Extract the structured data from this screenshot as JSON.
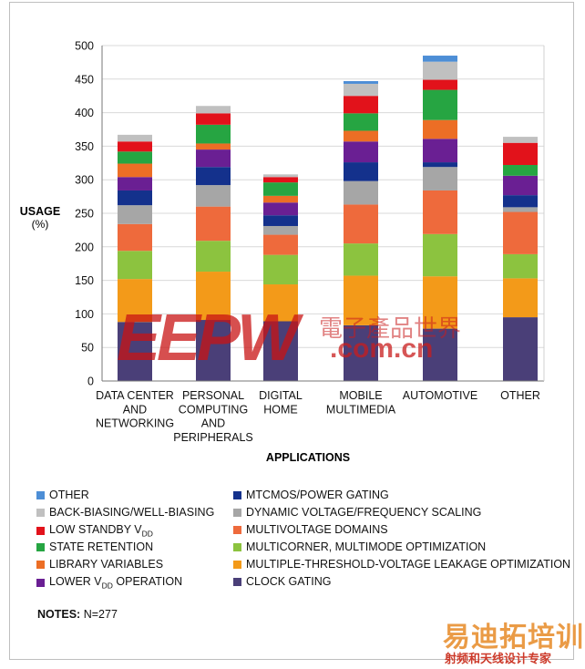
{
  "chart_data": {
    "type": "bar",
    "stacked": true,
    "ylabel": "USAGE",
    "ylabel_unit": "(%)",
    "xlabel": "APPLICATIONS",
    "ylim": [
      0,
      500
    ],
    "yticks": [
      0,
      50,
      100,
      150,
      200,
      250,
      300,
      350,
      400,
      450,
      500
    ],
    "grid": true,
    "legend_position": "bottom",
    "categories": [
      [
        "DATA CENTER",
        "AND",
        "NETWORKING"
      ],
      [
        "PERSONAL",
        "COMPUTING",
        "AND",
        "PERIPHERALS"
      ],
      [
        "DIGITAL",
        "HOME"
      ],
      [
        "MOBILE",
        "MULTIMEDIA"
      ],
      [
        "AUTOMOTIVE"
      ],
      [
        "OTHER"
      ]
    ],
    "series": [
      {
        "name": "CLOCK GATING",
        "color": "#4a3f78",
        "values": [
          88,
          91,
          89,
          83,
          78,
          95
        ]
      },
      {
        "name": "MULTIPLE-THRESHOLD-VOLTAGE LEAKAGE OPTIMIZATION",
        "color": "#f39a19",
        "values": [
          64,
          72,
          55,
          74,
          78,
          58
        ]
      },
      {
        "name": "MULTICORNER, MULTIMODE OPTIMIZATION",
        "color": "#8cc33f",
        "values": [
          42,
          46,
          44,
          48,
          63,
          36
        ]
      },
      {
        "name": "MULTIVOLTAGE DOMAINS",
        "color": "#ee6a3c",
        "values": [
          40,
          51,
          30,
          58,
          65,
          63
        ]
      },
      {
        "name": "DYNAMIC VOLTAGE/FREQUENCY SCALING",
        "color": "#a6a6a6",
        "values": [
          28,
          32,
          13,
          35,
          35,
          7
        ]
      },
      {
        "name": "MTCMOS/POWER GATING",
        "color": "#14318c",
        "values": [
          22,
          27,
          16,
          28,
          7,
          18
        ]
      },
      {
        "name": "LOWER VDD OPERATION",
        "color": "#6a1f93",
        "values": [
          20,
          26,
          19,
          31,
          35,
          29
        ]
      },
      {
        "name": "LIBRARY VARIABLES",
        "color": "#ec6e25",
        "values": [
          20,
          9,
          10,
          16,
          28,
          0
        ]
      },
      {
        "name": "STATE RETENTION",
        "color": "#26a542",
        "values": [
          18,
          28,
          20,
          26,
          45,
          16
        ]
      },
      {
        "name": "LOW STANDBY VDD",
        "color": "#e2121b",
        "values": [
          15,
          17,
          8,
          26,
          15,
          33
        ]
      },
      {
        "name": "BACK-BIASING/WELL-BIASING",
        "color": "#c0c0c0",
        "values": [
          10,
          11,
          4,
          18,
          27,
          9
        ]
      },
      {
        "name": "OTHER",
        "color": "#4d8ed6",
        "values": [
          0,
          0,
          0,
          4,
          9,
          0
        ]
      }
    ]
  },
  "legend": [
    {
      "label": "OTHER",
      "sub": "",
      "tail": "",
      "color": "#4d8ed6"
    },
    {
      "label": "BACK-BIASING/WELL-BIASING",
      "sub": "",
      "tail": "",
      "color": "#c0c0c0"
    },
    {
      "label": "LOW STANDBY V",
      "sub": "DD",
      "tail": "",
      "color": "#e2121b"
    },
    {
      "label": "STATE RETENTION",
      "sub": "",
      "tail": "",
      "color": "#26a542"
    },
    {
      "label": "LIBRARY VARIABLES",
      "sub": "",
      "tail": "",
      "color": "#ec6e25"
    },
    {
      "label": "LOWER V",
      "sub": "DD",
      "tail": " OPERATION",
      "color": "#6a1f93"
    },
    {
      "label": "MTCMOS/POWER GATING",
      "sub": "",
      "tail": "",
      "color": "#14318c"
    },
    {
      "label": "DYNAMIC VOLTAGE/FREQUENCY SCALING",
      "sub": "",
      "tail": "",
      "color": "#a6a6a6"
    },
    {
      "label": "MULTIVOLTAGE DOMAINS",
      "sub": "",
      "tail": "",
      "color": "#ee6a3c"
    },
    {
      "label": "MULTICORNER, MULTIMODE OPTIMIZATION",
      "sub": "",
      "tail": "",
      "color": "#8cc33f"
    },
    {
      "label": "MULTIPLE-THRESHOLD-VOLTAGE LEAKAGE OPTIMIZATION",
      "sub": "",
      "tail": "",
      "color": "#f39a19"
    },
    {
      "label": "CLOCK GATING",
      "sub": "",
      "tail": "",
      "color": "#4a3f78"
    }
  ],
  "notes": {
    "label": "NOTES:",
    "text": " N=277"
  },
  "watermarks": {
    "eepw": "EEPW",
    "eepw_cn": "電子產品世界",
    "eepw_url": ".com.cn",
    "rf_cn": "易迪拓培训",
    "rf_sub": "射频和天线设计专家"
  }
}
